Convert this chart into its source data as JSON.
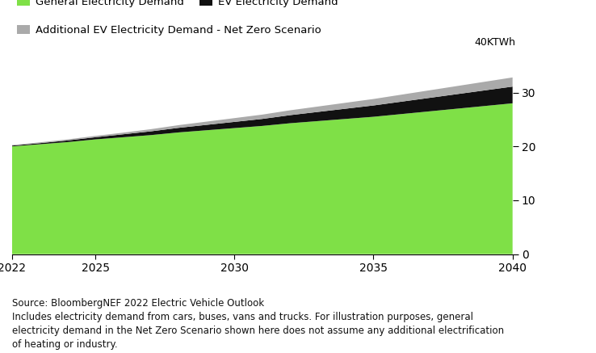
{
  "years": [
    2022,
    2023,
    2024,
    2025,
    2026,
    2027,
    2028,
    2029,
    2030,
    2031,
    2032,
    2033,
    2034,
    2035,
    2036,
    2037,
    2038,
    2039,
    2040
  ],
  "general_demand": [
    20.0,
    20.4,
    20.8,
    21.3,
    21.7,
    22.1,
    22.6,
    23.0,
    23.4,
    23.8,
    24.3,
    24.7,
    25.1,
    25.5,
    26.0,
    26.5,
    27.0,
    27.5,
    28.0
  ],
  "ev_demand": [
    0.15,
    0.2,
    0.3,
    0.4,
    0.55,
    0.7,
    0.85,
    1.0,
    1.15,
    1.3,
    1.5,
    1.7,
    1.9,
    2.1,
    2.3,
    2.5,
    2.7,
    2.9,
    3.1
  ],
  "netzero_additional": [
    0.1,
    0.15,
    0.2,
    0.25,
    0.3,
    0.4,
    0.5,
    0.6,
    0.7,
    0.8,
    0.9,
    1.0,
    1.1,
    1.2,
    1.3,
    1.4,
    1.5,
    1.6,
    1.7
  ],
  "color_general": "#7FE047",
  "color_ev": "#111111",
  "color_netzero": "#aaaaaa",
  "yticks": [
    0,
    10,
    20,
    30
  ],
  "ylim": [
    0,
    38
  ],
  "xlim": [
    2022,
    2040
  ],
  "xticks": [
    2022,
    2025,
    2030,
    2035,
    2040
  ],
  "unit_label": "40KTWh",
  "legend_labels": [
    "General Electricity Demand",
    "EV Electricity Demand",
    "Additional EV Electricity Demand - Net Zero Scenario"
  ],
  "footnote": "Source: BloombergNEF 2022 Electric Vehicle Outlook\nIncludes electricity demand from cars, buses, vans and trucks. For illustration purposes, general\nelectricity demand in the Net Zero Scenario shown here does not assume any additional electrification\nof heating or industry.",
  "bg_color": "#ffffff"
}
